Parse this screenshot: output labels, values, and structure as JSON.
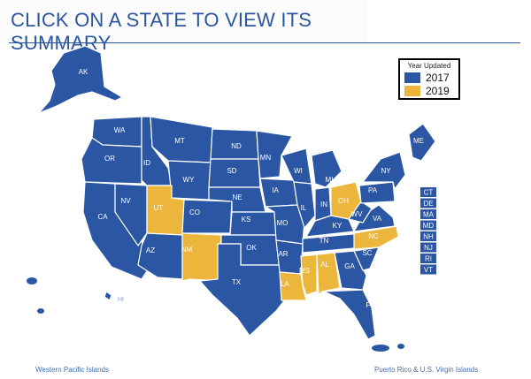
{
  "header": {
    "title": "CLICK ON A STATE TO VIEW ITS SUMMARY"
  },
  "legend": {
    "title": "Year Updated",
    "items": [
      {
        "label": "2017",
        "color": "#2a56a4"
      },
      {
        "label": "2019",
        "color": "#ecb63c"
      }
    ]
  },
  "colors": {
    "year2017": "#2a56a4",
    "year2019": "#ecb63c"
  },
  "states": {
    "AK": "2017",
    "WA": "2017",
    "OR": "2017",
    "CA": "2017",
    "NV": "2017",
    "ID": "2017",
    "MT": "2017",
    "WY": "2017",
    "UT": "2019",
    "AZ": "2017",
    "CO": "2017",
    "NM": "2019",
    "ND": "2017",
    "SD": "2017",
    "NE": "2017",
    "KS": "2017",
    "OK": "2017",
    "TX": "2017",
    "MN": "2017",
    "IA": "2017",
    "MO": "2017",
    "AR": "2017",
    "LA": "2019",
    "WI": "2017",
    "IL": "2017",
    "MI": "2017",
    "IN": "2017",
    "OH": "2019",
    "KY": "2017",
    "TN": "2017",
    "MS": "2019",
    "AL": "2019",
    "GA": "2017",
    "FL": "2017",
    "SC": "2017",
    "NC": "2019",
    "VA": "2017",
    "WV": "2017",
    "PA": "2017",
    "NY": "2017",
    "ME": "2017",
    "HI": "2017"
  },
  "small_states": [
    "CT",
    "DE",
    "MA",
    "MD",
    "NH",
    "NJ",
    "RI",
    "VT"
  ],
  "territories": {
    "western_pacific": "Western Pacific Islands",
    "pr_vi": "Puerto Rico & U.S. Virgin Islands"
  }
}
